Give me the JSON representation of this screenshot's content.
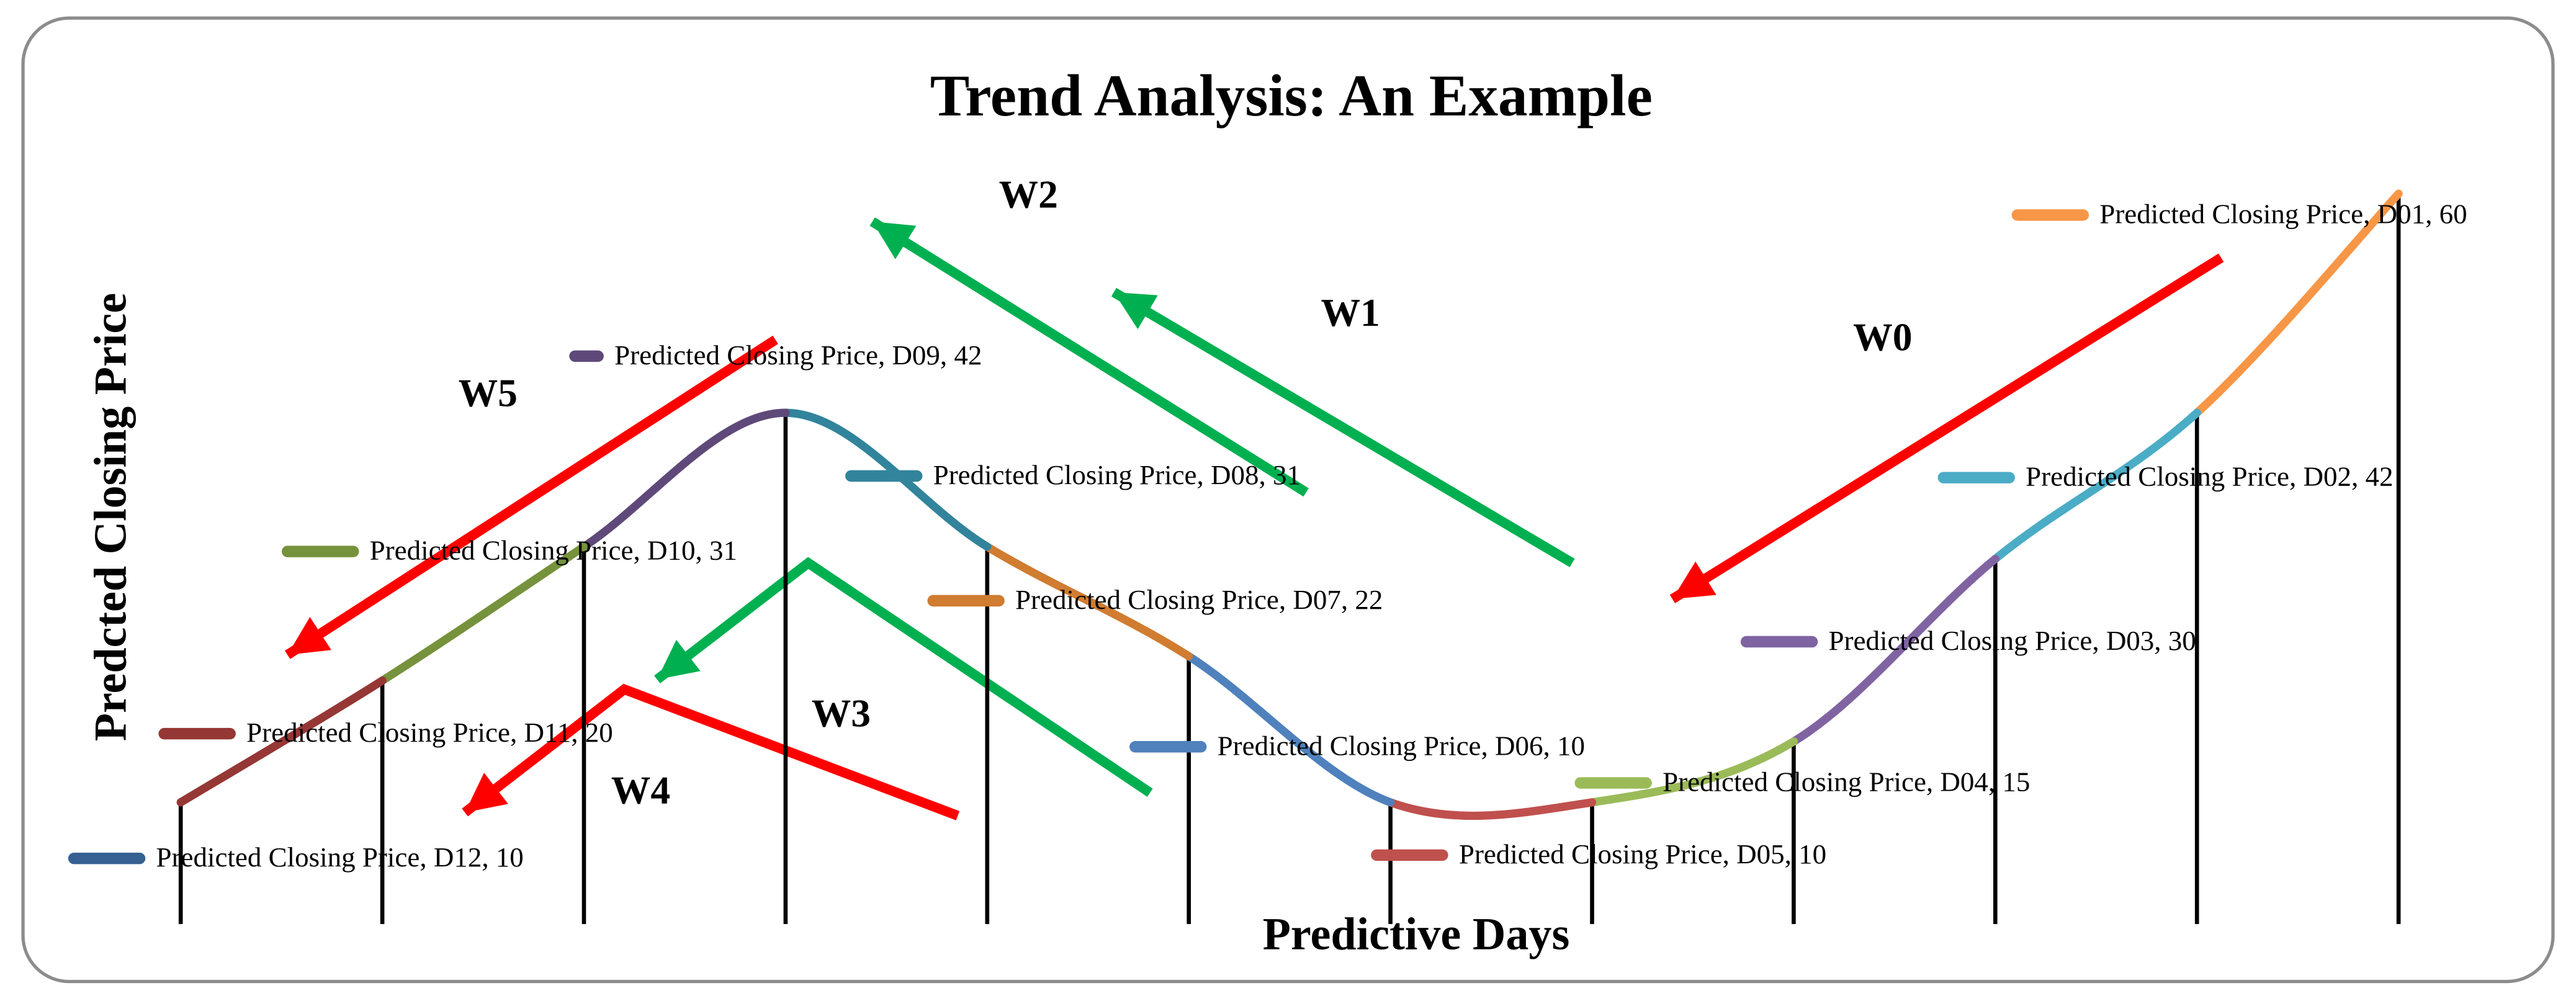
{
  "chart_data": {
    "type": "line",
    "title": "Trend Analysis: An Example",
    "x_label": "Predictive Days",
    "y_label": "Predcted Closing Price",
    "x_reverse": true,
    "ylim": [
      0,
      60
    ],
    "drop_lines": true,
    "values": [
      60,
      42,
      30,
      15,
      10,
      10,
      22,
      31,
      42,
      31,
      20,
      10
    ],
    "value_labels": [
      "Predicted Closing Price, D01, 60",
      "Predicted Closing Price, D02, 42",
      "Predicted Closing Price, D03, 30",
      "Predicted Closing Price, D04, 15",
      "Predicted Closing Price, D05, 10",
      "Predicted Closing Price, D06, 10",
      "Predicted Closing Price, D07, 22",
      "Predicted Closing Price, D08, 31",
      "Predicted Closing Price, D09, 42",
      "Predicted Closing Price, D10, 31",
      "Predicted Closing Price, D11, 20",
      "Predicted Closing Price, D12, 10"
    ],
    "colors": [
      "#f79646",
      "#4bacc6",
      "#8064a2",
      "#9bbb59",
      "#c0504d",
      "#4f81bd",
      "#d07c31",
      "#31849b",
      "#5f497a",
      "#76923c",
      "#953735",
      "#366092"
    ],
    "annotations": [
      {
        "text": "W0",
        "color": "#ff0000"
      },
      {
        "text": "W1",
        "color": "#00b050"
      },
      {
        "text": "W2",
        "color": "#00b050"
      },
      {
        "text": "W3",
        "color": "#00b050"
      },
      {
        "text": "W4",
        "color": "#ff0000"
      },
      {
        "text": "W5",
        "color": "#ff0000"
      }
    ]
  }
}
